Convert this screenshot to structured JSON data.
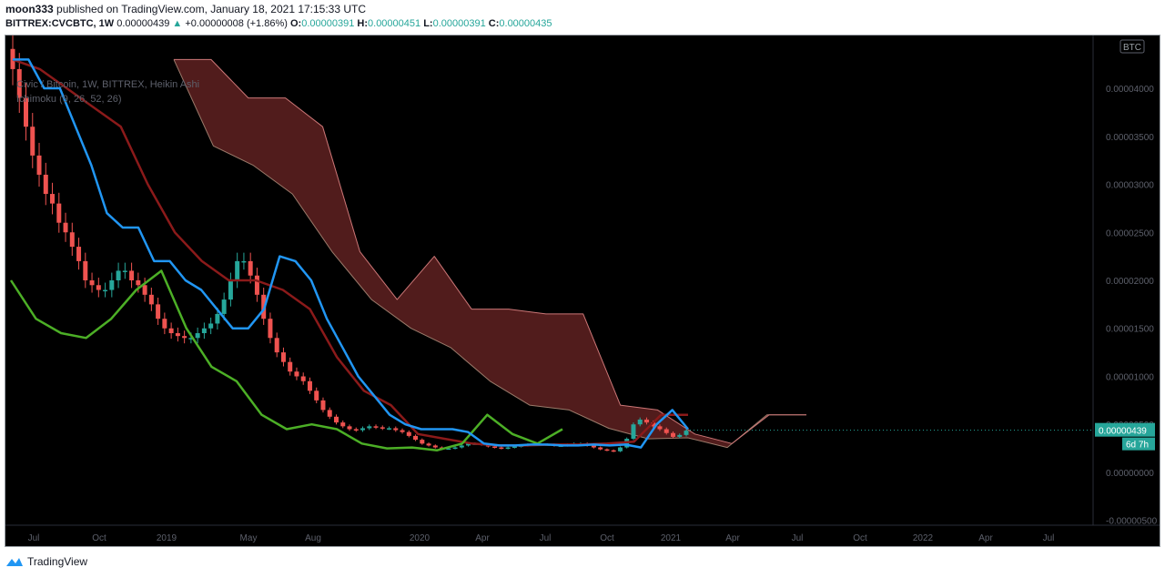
{
  "header": {
    "author": "moon333",
    "published_text": "published on TradingView.com, January 18, 2021 17:15:33 UTC",
    "symbol": "BITTREX:CVCBTC, 1W",
    "last": "0.00000439",
    "change_arrow": "▲",
    "change": "+0.00000008 (+1.86%)",
    "o_label": "O:",
    "o": "0.00000391",
    "h_label": "H:",
    "h": "0.00000451",
    "l_label": "L:",
    "l": "0.00000391",
    "c_label": "C:",
    "c": "0.00000435"
  },
  "legend": {
    "line1": "Civic / Bitcoin, 1W, BITTREX, Heikin Ashi",
    "line2": "Ichimoku (9, 26, 52, 26)"
  },
  "price_scale": {
    "currency": "BTC",
    "last_price_label": "0.00000439",
    "countdown_label": "6d 7h"
  },
  "footer": {
    "brand": "TradingView"
  },
  "colors": {
    "up": "#26a69a",
    "down": "#ef5350",
    "conversion": "#2196f3",
    "base": "#8b1a1a",
    "lagging": "#4caf26",
    "cloud_bear": "#5a1f1f",
    "cloud_bull": "#3e6b3e",
    "background": "#000000",
    "axis_text": "#5d606b"
  },
  "chart_data": {
    "type": "candlestick",
    "title": "Civic / Bitcoin, 1W, BITTREX, Heikin Ashi",
    "indicator": "Ichimoku (9, 26, 52, 26)",
    "x_ticks": [
      "Jul",
      "Oct",
      "2019",
      "May",
      "Aug",
      "2020",
      "Apr",
      "Jul",
      "Oct",
      "2021",
      "Apr",
      "Jul",
      "Oct",
      "2022",
      "Apr",
      "Jul"
    ],
    "x_tick_dates": [
      "2018-07",
      "2018-10",
      "2019-01",
      "2019-05",
      "2019-08",
      "2020-01",
      "2020-04",
      "2020-07",
      "2020-10",
      "2021-01",
      "2021-04",
      "2021-07",
      "2021-10",
      "2022-01",
      "2022-04",
      "2022-07"
    ],
    "y_ticks": [
      "0.00004000",
      "0.00003500",
      "0.00003000",
      "0.00002500",
      "0.00002000",
      "0.00001500",
      "0.00001000",
      "0.00000500",
      "0.00000000",
      "-0.00000500"
    ],
    "y_tick_values": [
      4e-05,
      3.5e-05,
      3e-05,
      2.5e-05,
      2e-05,
      1.5e-05,
      1e-05,
      5e-06,
      0.0,
      -5e-06
    ],
    "ylim": [
      -5.5e-06,
      4.55e-05
    ],
    "candles_weekly_close": [
      4.2e-05,
      3.9e-05,
      3.6e-05,
      3.3e-05,
      3.1e-05,
      2.9e-05,
      2.8e-05,
      2.6e-05,
      2.5e-05,
      2.35e-05,
      2.2e-05,
      2e-05,
      1.95e-05,
      1.9e-05,
      1.9e-05,
      2e-05,
      2.1e-05,
      2.1e-05,
      2e-05,
      1.95e-05,
      1.85e-05,
      1.75e-05,
      1.6e-05,
      1.5e-05,
      1.45e-05,
      1.42e-05,
      1.4e-05,
      1.4e-05,
      1.45e-05,
      1.5e-05,
      1.55e-05,
      1.65e-05,
      1.8e-05,
      2e-05,
      2.2e-05,
      2.2e-05,
      2.05e-05,
      1.85e-05,
      1.6e-05,
      1.4e-05,
      1.25e-05,
      1.15e-05,
      1.05e-05,
      1e-05,
      9.5e-06,
      8.5e-06,
      7.5e-06,
      6.5e-06,
      5.8e-06,
      5.2e-06,
      4.8e-06,
      4.5e-06,
      4.4e-06,
      4.6e-06,
      4.8e-06,
      4.7e-06,
      4.6e-06,
      4.6e-06,
      4.4e-06,
      4.2e-06,
      3.8e-06,
      3.4e-06,
      3e-06,
      2.8e-06,
      2.6e-06,
      2.5e-06,
      2.5e-06,
      2.6e-06,
      2.8e-06,
      3e-06,
      3e-06,
      2.9e-06,
      2.7e-06,
      2.6e-06,
      2.5e-06,
      2.6e-06,
      2.7e-06,
      2.8e-06,
      2.9e-06,
      2.9e-06,
      2.9e-06,
      2.9e-06,
      2.8e-06,
      2.8e-06,
      2.9e-06,
      3e-06,
      3e-06,
      2.8e-06,
      2.6e-06,
      2.4e-06,
      2.3e-06,
      2.2e-06,
      2.6e-06,
      3.5e-06,
      5e-06,
      5.5e-06,
      5.2e-06,
      4.8e-06,
      4.5e-06,
      4.1e-06,
      3.7e-06,
      3.9e-06,
      4.35e-06
    ],
    "series": [
      {
        "name": "Conversion Line",
        "values": [
          4.3e-05,
          4.3e-05,
          4e-05,
          4e-05,
          3.6e-05,
          3.2e-05,
          2.7e-05,
          2.55e-05,
          2.55e-05,
          2.2e-05,
          2.2e-05,
          2e-05,
          1.9e-05,
          1.7e-05,
          1.5e-05,
          1.5e-05,
          1.7e-05,
          2.25e-05,
          2.2e-05,
          2e-05,
          1.6e-05,
          1.3e-05,
          1e-05,
          8e-06,
          6e-06,
          5e-06,
          4.5e-06,
          4.5e-06,
          4.5e-06,
          4.2e-06,
          3e-06,
          2.8e-06,
          2.8e-06,
          2.9e-06,
          2.9e-06,
          2.8e-06,
          2.8e-06,
          2.9e-06,
          2.8e-06,
          2.9e-06,
          2.6e-06,
          5e-06,
          6.5e-06,
          4.5e-06
        ]
      },
      {
        "name": "Base Line",
        "values": [
          4.3e-05,
          4.2e-05,
          4e-05,
          3.8e-05,
          3.6e-05,
          3e-05,
          2.5e-05,
          2.2e-05,
          2e-05,
          2e-05,
          1.9e-05,
          1.7e-05,
          1.2e-05,
          8.5e-06,
          7e-06,
          4e-06,
          3.5e-06,
          3e-06,
          2.8e-06,
          2.8e-06,
          2.9e-06,
          2.9e-06,
          3e-06,
          3.2e-06,
          6e-06,
          6e-06
        ]
      },
      {
        "name": "Lagging Span",
        "values": [
          2e-05,
          1.6e-05,
          1.45e-05,
          1.4e-05,
          1.6e-05,
          1.9e-05,
          2.1e-05,
          1.5e-05,
          1.1e-05,
          9.5e-06,
          6e-06,
          4.5e-06,
          5e-06,
          4.5e-06,
          3e-06,
          2.5e-06,
          2.6e-06,
          2.3e-06,
          3e-06,
          6e-06,
          4e-06,
          3e-06,
          4.5e-06
        ]
      },
      {
        "name": "Leading Span A",
        "values": [
          4.3e-05,
          3.4e-05,
          3.2e-05,
          2.9e-05,
          2.3e-05,
          1.8e-05,
          1.5e-05,
          1.3e-05,
          9.5e-06,
          7e-06,
          6.5e-06,
          4.6e-06,
          3.5e-06,
          3.6e-06,
          2.6e-06,
          6e-06,
          6e-06
        ]
      },
      {
        "name": "Leading Span B",
        "values": [
          4.3e-05,
          4.3e-05,
          3.9e-05,
          3.9e-05,
          3.6e-05,
          2.3e-05,
          1.8e-05,
          2.25e-05,
          1.7e-05,
          1.7e-05,
          1.65e-05,
          1.65e-05,
          7e-06,
          6.5e-06,
          4e-06,
          3e-06,
          6e-06,
          6e-06
        ]
      }
    ],
    "last_price": 4.39e-06,
    "grid": false,
    "legend_position": "top-left"
  }
}
